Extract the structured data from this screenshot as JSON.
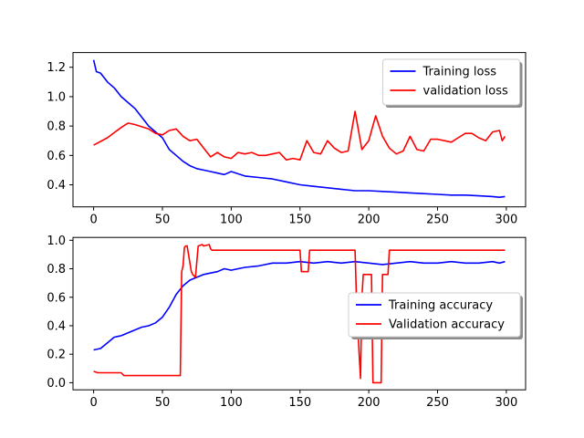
{
  "chart_data": [
    {
      "type": "line",
      "title": "",
      "xlabel": "",
      "ylabel": "",
      "xlim": [
        -15,
        314
      ],
      "ylim": [
        0.25,
        1.3
      ],
      "xticks": [
        0,
        50,
        100,
        150,
        200,
        250,
        300
      ],
      "yticks": [
        0.4,
        0.6,
        0.8,
        1.0,
        1.2
      ],
      "xtick_labels": [
        "0",
        "50",
        "100",
        "150",
        "200",
        "250",
        "300"
      ],
      "ytick_labels": [
        "0.4",
        "0.6",
        "0.8",
        "1.0",
        "1.2"
      ],
      "grid": false,
      "legend_position": "top-right",
      "series": [
        {
          "name": "Training loss",
          "color": "#0000ff",
          "x": [
            0,
            2,
            5,
            10,
            15,
            20,
            25,
            30,
            35,
            40,
            45,
            50,
            55,
            60,
            65,
            70,
            75,
            80,
            85,
            90,
            95,
            100,
            110,
            120,
            130,
            140,
            150,
            160,
            170,
            180,
            190,
            200,
            210,
            220,
            230,
            240,
            250,
            260,
            270,
            280,
            290,
            295,
            299
          ],
          "y": [
            1.25,
            1.17,
            1.16,
            1.1,
            1.06,
            1.0,
            0.96,
            0.92,
            0.86,
            0.8,
            0.76,
            0.72,
            0.64,
            0.6,
            0.56,
            0.53,
            0.51,
            0.5,
            0.49,
            0.48,
            0.47,
            0.49,
            0.46,
            0.45,
            0.44,
            0.42,
            0.4,
            0.39,
            0.38,
            0.37,
            0.36,
            0.36,
            0.355,
            0.35,
            0.345,
            0.34,
            0.335,
            0.33,
            0.33,
            0.325,
            0.32,
            0.315,
            0.32
          ]
        },
        {
          "name": "validation loss",
          "color": "#ff0000",
          "x": [
            0,
            10,
            20,
            25,
            30,
            40,
            45,
            50,
            55,
            60,
            65,
            70,
            75,
            80,
            85,
            90,
            95,
            100,
            105,
            110,
            115,
            120,
            125,
            130,
            135,
            140,
            145,
            150,
            155,
            160,
            165,
            170,
            175,
            180,
            185,
            190,
            195,
            200,
            205,
            210,
            215,
            220,
            225,
            230,
            235,
            240,
            245,
            250,
            255,
            260,
            265,
            270,
            275,
            280,
            285,
            290,
            295,
            297,
            299
          ],
          "y": [
            0.67,
            0.72,
            0.79,
            0.82,
            0.81,
            0.78,
            0.75,
            0.74,
            0.77,
            0.78,
            0.73,
            0.7,
            0.71,
            0.65,
            0.59,
            0.62,
            0.59,
            0.58,
            0.62,
            0.61,
            0.62,
            0.6,
            0.6,
            0.61,
            0.62,
            0.57,
            0.58,
            0.57,
            0.7,
            0.62,
            0.61,
            0.7,
            0.65,
            0.62,
            0.63,
            0.9,
            0.64,
            0.7,
            0.87,
            0.73,
            0.65,
            0.61,
            0.63,
            0.73,
            0.64,
            0.63,
            0.71,
            0.71,
            0.7,
            0.69,
            0.72,
            0.75,
            0.75,
            0.72,
            0.7,
            0.76,
            0.77,
            0.7,
            0.73
          ]
        }
      ]
    },
    {
      "type": "line",
      "title": "",
      "xlabel": "",
      "ylabel": "",
      "xlim": [
        -15,
        314
      ],
      "ylim": [
        -0.05,
        1.02
      ],
      "xticks": [
        0,
        50,
        100,
        150,
        200,
        250,
        300
      ],
      "yticks": [
        0.0,
        0.2,
        0.4,
        0.6,
        0.8,
        1.0
      ],
      "xtick_labels": [
        "0",
        "50",
        "100",
        "150",
        "200",
        "250",
        "300"
      ],
      "ytick_labels": [
        "0.0",
        "0.2",
        "0.4",
        "0.6",
        "0.8",
        "1.0"
      ],
      "grid": false,
      "legend_position": "center-right",
      "series": [
        {
          "name": "Training accuracy",
          "color": "#0000ff",
          "x": [
            0,
            5,
            10,
            15,
            20,
            25,
            30,
            35,
            40,
            45,
            50,
            55,
            60,
            65,
            70,
            75,
            80,
            85,
            90,
            95,
            100,
            110,
            120,
            130,
            140,
            150,
            160,
            170,
            180,
            190,
            200,
            210,
            220,
            230,
            240,
            250,
            260,
            270,
            280,
            290,
            295,
            299
          ],
          "y": [
            0.23,
            0.24,
            0.28,
            0.32,
            0.33,
            0.35,
            0.37,
            0.39,
            0.4,
            0.42,
            0.46,
            0.53,
            0.62,
            0.68,
            0.72,
            0.74,
            0.76,
            0.77,
            0.78,
            0.8,
            0.79,
            0.81,
            0.82,
            0.84,
            0.84,
            0.85,
            0.84,
            0.85,
            0.84,
            0.85,
            0.84,
            0.83,
            0.84,
            0.85,
            0.84,
            0.84,
            0.85,
            0.84,
            0.84,
            0.85,
            0.84,
            0.85
          ]
        },
        {
          "name": "Validation accuracy",
          "color": "#ff0000",
          "x": [
            0,
            3,
            20,
            22,
            63,
            64,
            65,
            66,
            67,
            68,
            71,
            72,
            74,
            76,
            79,
            80,
            84,
            85,
            86,
            87,
            150,
            151,
            156,
            157,
            190,
            191,
            192,
            193,
            194,
            195,
            196,
            197,
            202,
            203,
            204,
            205,
            209,
            210,
            214,
            215,
            299
          ],
          "y": [
            0.08,
            0.07,
            0.07,
            0.05,
            0.05,
            0.78,
            0.82,
            0.95,
            0.96,
            0.96,
            0.78,
            0.76,
            0.74,
            0.96,
            0.97,
            0.96,
            0.97,
            0.94,
            0.93,
            0.93,
            0.93,
            0.78,
            0.78,
            0.93,
            0.93,
            0.6,
            0.4,
            0.2,
            0.03,
            0.6,
            0.76,
            0.76,
            0.76,
            0.0,
            0.0,
            0.0,
            0.0,
            0.76,
            0.76,
            0.93,
            0.93
          ]
        }
      ]
    }
  ]
}
